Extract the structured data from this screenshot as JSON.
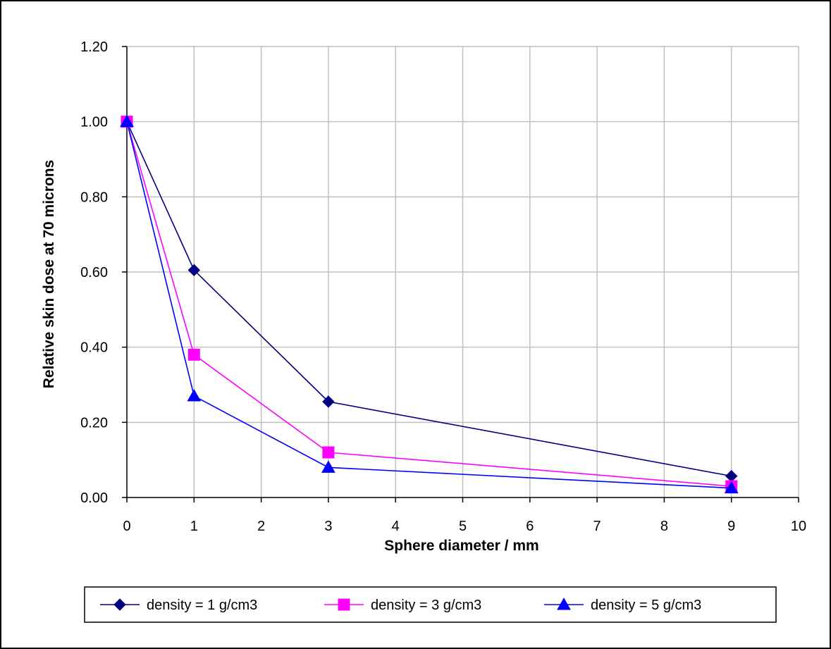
{
  "chart_data": {
    "type": "line",
    "title": "",
    "xlabel": "Sphere diameter / mm",
    "ylabel": "Relative skin dose at 70 microns",
    "xlim": [
      0,
      10
    ],
    "ylim": [
      0,
      1.2
    ],
    "xticks": [
      "0",
      "1",
      "2",
      "3",
      "4",
      "5",
      "6",
      "7",
      "8",
      "9",
      "10"
    ],
    "yticks": [
      "0.00",
      "0.20",
      "0.40",
      "0.60",
      "0.80",
      "1.00",
      "1.20"
    ],
    "grid": true,
    "legend_position": "bottom",
    "series": [
      {
        "name": "density = 1 g/cm3",
        "color": "#000080",
        "marker": "diamond",
        "x": [
          0,
          1,
          3,
          9
        ],
        "y": [
          1.0,
          0.605,
          0.255,
          0.057
        ]
      },
      {
        "name": "density = 3 g/cm3",
        "color": "#ff00ff",
        "marker": "square",
        "x": [
          0,
          1,
          3,
          9
        ],
        "y": [
          1.0,
          0.38,
          0.12,
          0.03
        ]
      },
      {
        "name": "density = 5 g/cm3",
        "color": "#0000ff",
        "marker": "triangle",
        "x": [
          0,
          1,
          3,
          9
        ],
        "y": [
          1.0,
          0.27,
          0.08,
          0.025
        ]
      }
    ]
  }
}
